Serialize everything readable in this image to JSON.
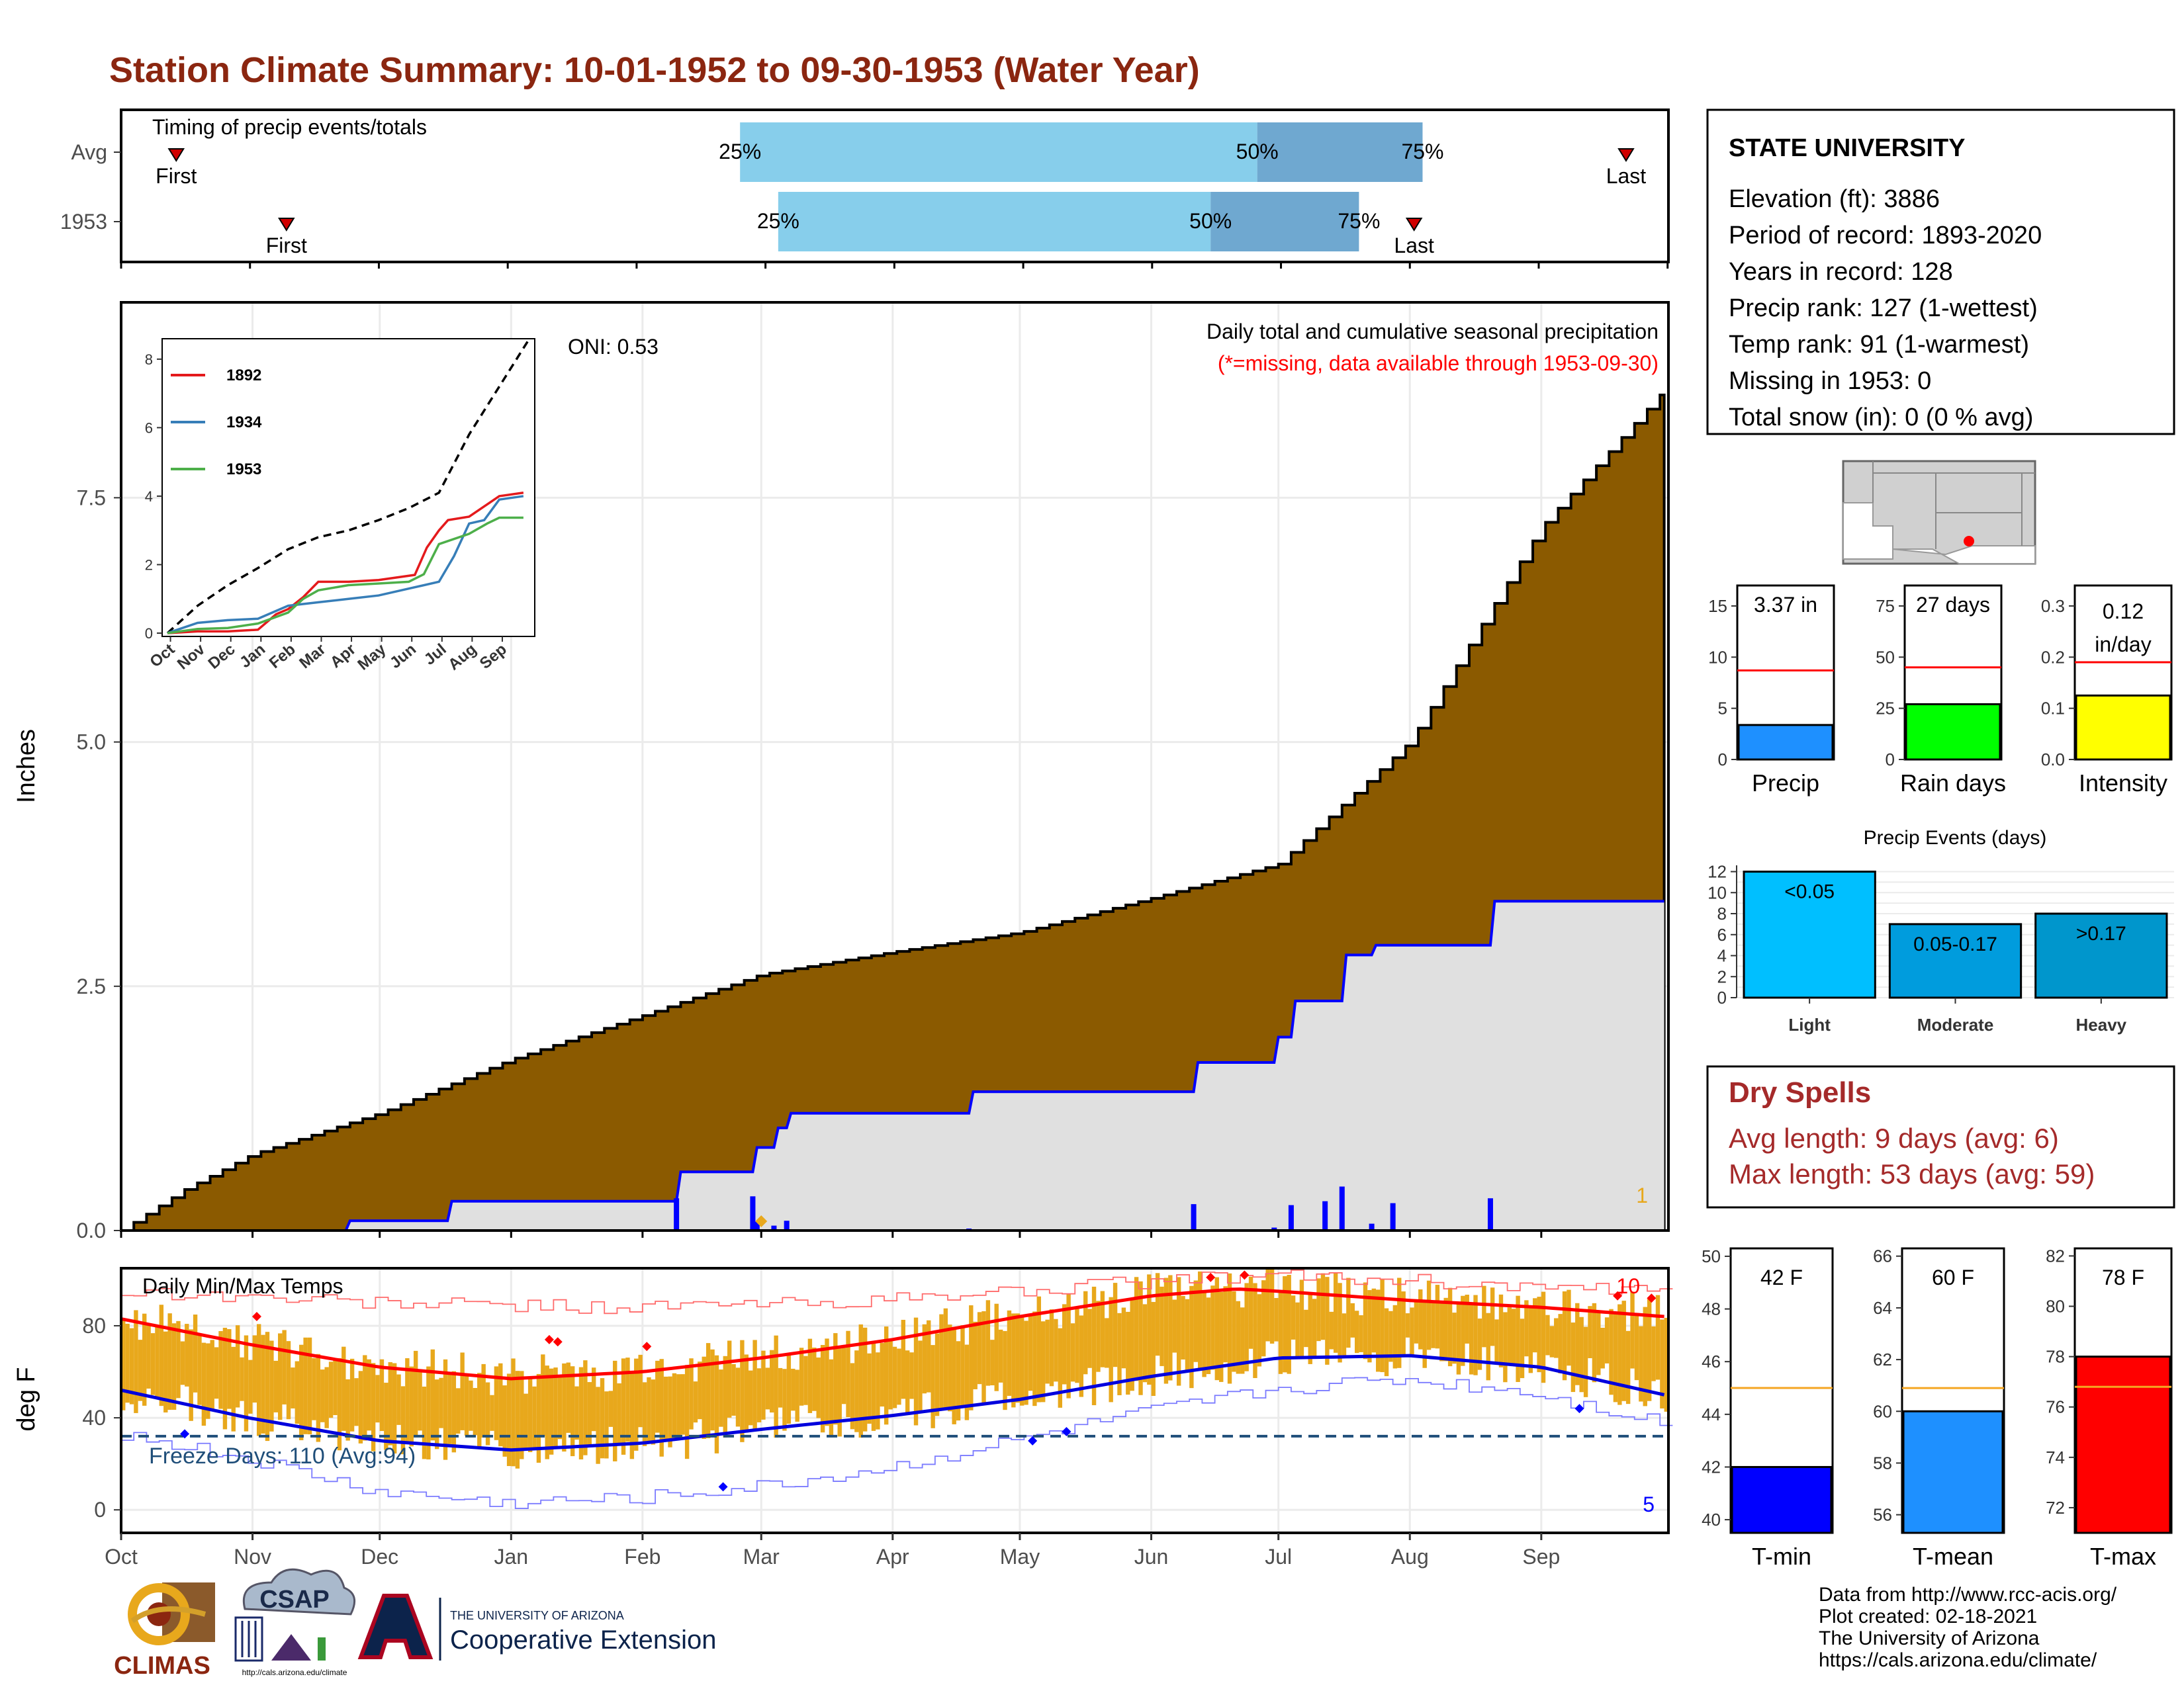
{
  "title": "Station Climate Summary: 10-01-1952 to 09-30-1953 (Water Year)",
  "colors": {
    "title": "#8b2610",
    "dry_title": "#a52a2a",
    "cum_fill": "#8b5a00",
    "cum_avg_fill": "#e0e0e0",
    "blue": "#0000ff",
    "temp_bar": "#e8a81c",
    "freeze_line": "#1f4e79",
    "light_blue": "#87ceeb",
    "mid_blue": "#6fa8d0"
  },
  "timing": {
    "title": "Timing of precip events/totals",
    "rows": [
      {
        "label": "Avg",
        "first_label": "First",
        "last_label": "Last",
        "p25_label": "25%",
        "p50_label": "50%",
        "p75_label": "75%",
        "first_day": 13,
        "last_day": 355,
        "p25": 146,
        "p50": 268,
        "p75": 307
      },
      {
        "label": "1953",
        "first_label": "First",
        "last_label": "Last",
        "p25_label": "25%",
        "p50_label": "50%",
        "p75_label": "75%",
        "first_day": 39,
        "last_day": 305,
        "p25": 155,
        "p50": 257,
        "p75": 292
      }
    ]
  },
  "station": {
    "name": "STATE UNIVERSITY",
    "lines": [
      "Elevation (ft): 3886",
      "Period of record: 1893-2020",
      "Years in record: 128",
      "Precip rank: 127 (1-wettest)",
      "Temp rank: 91 (1-warmest)",
      "Missing in 1953: 0",
      "Total snow (in): 0 (0 % avg)"
    ]
  },
  "chart_data": [
    {
      "type": "area",
      "name": "cumulative_precip",
      "title": "Daily total and cumulative seasonal precipitation",
      "subtitle": "(*=missing, data available through 1953-09-30)",
      "ylabel": "Inches",
      "oni_label": "ONI: 0.53",
      "corner_label": "1",
      "ylim": [
        0,
        9.5
      ],
      "yticks": [
        "0.0",
        "2.5",
        "5.0",
        "7.5"
      ],
      "yticks_values": [
        0,
        2.5,
        5.0,
        7.5
      ],
      "months": [
        "Oct",
        "Nov",
        "Dec",
        "Jan",
        "Feb",
        "Mar",
        "Apr",
        "May",
        "Jun",
        "Jul",
        "Aug",
        "Sep"
      ],
      "avg_cumulative": {
        "day": [
          0,
          15,
          31,
          61,
          92,
          123,
          151,
          182,
          212,
          243,
          273,
          304,
          335,
          364
        ],
        "value": [
          0,
          0.42,
          0.78,
          1.2,
          1.75,
          2.2,
          2.62,
          2.85,
          3.05,
          3.4,
          3.75,
          5.0,
          7.2,
          8.6
        ]
      },
      "year_cumulative": {
        "day": [
          0,
          53,
          54,
          77,
          78,
          131,
          132,
          149,
          150,
          154,
          155,
          157,
          158,
          200,
          201,
          253,
          254,
          272,
          273,
          276,
          277,
          288,
          289,
          295,
          296,
          323,
          324,
          364
        ],
        "value": [
          0,
          0,
          0.1,
          0.1,
          0.3,
          0.3,
          0.6,
          0.6,
          0.85,
          0.85,
          1.05,
          1.05,
          1.2,
          1.2,
          1.42,
          1.42,
          1.72,
          1.72,
          1.98,
          1.98,
          2.35,
          2.35,
          2.82,
          2.82,
          2.92,
          2.92,
          3.37,
          3.37
        ]
      },
      "daily_bars": {
        "day": [
          131,
          149,
          150,
          154,
          157,
          200,
          253,
          272,
          276,
          284,
          288,
          295,
          300,
          323
        ],
        "value": [
          0.33,
          0.35,
          0.09,
          0.05,
          0.1,
          0.02,
          0.27,
          0.03,
          0.26,
          0.3,
          0.45,
          0.07,
          0.28,
          0.33
        ]
      },
      "trace_marker_day": 151
    },
    {
      "type": "line",
      "name": "inset_cumulative",
      "categories": [
        "Oct",
        "Nov",
        "Dec",
        "Jan",
        "Feb",
        "Mar",
        "Apr",
        "May",
        "Jun",
        "Jul",
        "Aug",
        "Sep"
      ],
      "ylim": [
        0,
        8.5
      ],
      "yticks": [
        "0",
        "2",
        "4",
        "6",
        "8"
      ],
      "series": [
        {
          "name": "Avg",
          "style": "dashed",
          "color": "#000000",
          "x": [
            0,
            1,
            2,
            3,
            4,
            5,
            6,
            7,
            8,
            9,
            10,
            11,
            12
          ],
          "values": [
            0,
            0.8,
            1.4,
            1.9,
            2.45,
            2.8,
            3.0,
            3.3,
            3.65,
            4.1,
            5.8,
            7.2,
            8.6
          ]
        },
        {
          "name": "1892",
          "color": "#e41a1c",
          "x": [
            0,
            1,
            2,
            3,
            3.6,
            4,
            4.5,
            5,
            6,
            7,
            8.2,
            8.6,
            9,
            9.3,
            10,
            10.5,
            11,
            11.8
          ],
          "values": [
            0,
            0.05,
            0.05,
            0.1,
            0.55,
            0.7,
            1.05,
            1.5,
            1.5,
            1.55,
            1.7,
            2.5,
            3.0,
            3.3,
            3.4,
            3.7,
            4.0,
            4.1
          ]
        },
        {
          "name": "1934",
          "color": "#377eb8",
          "x": [
            0,
            1,
            2,
            3,
            4,
            5,
            6,
            7,
            8,
            9,
            9.5,
            10,
            10.5,
            11,
            11.8
          ],
          "values": [
            0,
            0.3,
            0.38,
            0.42,
            0.8,
            0.9,
            1.0,
            1.1,
            1.3,
            1.5,
            2.25,
            3.2,
            3.3,
            3.9,
            4.0
          ]
        },
        {
          "name": "1953",
          "color": "#4daf4a",
          "x": [
            0,
            1,
            2,
            3,
            4,
            4.5,
            5,
            6,
            7,
            8,
            8.5,
            9,
            10,
            10.6,
            11,
            11.8
          ],
          "values": [
            0,
            0.12,
            0.15,
            0.28,
            0.6,
            1.0,
            1.25,
            1.4,
            1.45,
            1.5,
            1.72,
            2.6,
            2.9,
            3.2,
            3.37,
            3.37
          ]
        }
      ]
    },
    {
      "type": "line",
      "name": "daily_temps",
      "title": "Daily Min/Max Temps",
      "ylabel": "deg F",
      "freeze_label": "Freeze Days: 110 (Avg:94)",
      "freeze_threshold": 32,
      "max_count_label": "10",
      "min_count_label": "5",
      "ylim": [
        -10,
        105
      ],
      "yticks": [
        "0",
        "40",
        "80"
      ],
      "yticks_values": [
        0,
        40,
        80
      ],
      "xticks": [
        "Oct",
        "Nov",
        "Dec",
        "Jan",
        "Feb",
        "Mar",
        "Apr",
        "May",
        "Jun",
        "Jul",
        "Aug",
        "Sep"
      ],
      "avg_max": {
        "day": [
          0,
          30,
          61,
          92,
          123,
          151,
          182,
          212,
          243,
          263,
          273,
          304,
          335,
          364
        ],
        "value": [
          83,
          72,
          62,
          57,
          60,
          66,
          74,
          84,
          93,
          96,
          95,
          91,
          88,
          84
        ]
      },
      "avg_min": {
        "day": [
          0,
          30,
          61,
          92,
          123,
          151,
          182,
          212,
          243,
          273,
          304,
          335,
          364
        ],
        "value": [
          52,
          40,
          30,
          26,
          29,
          35,
          41,
          48,
          58,
          66,
          67,
          62,
          50
        ]
      },
      "record_max": {
        "day": [
          0,
          60,
          120,
          180,
          240,
          270,
          300,
          364
        ],
        "value": [
          95,
          90,
          88,
          91,
          99,
          102,
          100,
          94
        ]
      },
      "record_min": {
        "day": [
          0,
          30,
          60,
          90,
          120,
          150,
          180,
          210,
          240,
          270,
          300,
          330,
          364
        ],
        "value": [
          33,
          22,
          8,
          3,
          5,
          10,
          18,
          30,
          42,
          52,
          57,
          52,
          38
        ]
      },
      "max_record_points": {
        "day": [
          32,
          101,
          103,
          124,
          257,
          265,
          353,
          361
        ],
        "value": [
          84,
          74,
          73,
          71,
          101,
          102,
          93,
          92
        ]
      },
      "min_record_points": {
        "day": [
          15,
          142,
          215,
          223,
          344
        ],
        "value": [
          33,
          10,
          30,
          34,
          44
        ]
      }
    },
    {
      "type": "bar",
      "name": "precip_total",
      "categories": [
        "Precip"
      ],
      "values": [
        3.37
      ],
      "avg": 8.7,
      "value_label": "3.37 in",
      "ylim": [
        0,
        17
      ],
      "yticks": [
        "0",
        "5",
        "10",
        "15"
      ],
      "yticks_values": [
        0,
        5,
        10,
        15
      ],
      "color": "#1e90ff"
    },
    {
      "type": "bar",
      "name": "rain_days",
      "categories": [
        "Rain days"
      ],
      "values": [
        27
      ],
      "avg": 45,
      "value_label": "27 days",
      "ylim": [
        0,
        85
      ],
      "yticks": [
        "0",
        "25",
        "50",
        "75"
      ],
      "yticks_values": [
        0,
        25,
        50,
        75
      ],
      "color": "#00ff00"
    },
    {
      "type": "bar",
      "name": "intensity",
      "categories": [
        "Intensity"
      ],
      "values": [
        0.125
      ],
      "avg": 0.19,
      "value_label": [
        "0.12",
        "in/day"
      ],
      "ylim": [
        0,
        0.34
      ],
      "yticks": [
        "0.0",
        "0.1",
        "0.2",
        "0.3"
      ],
      "yticks_values": [
        0,
        0.1,
        0.2,
        0.3
      ],
      "color": "#ffff00"
    },
    {
      "type": "bar",
      "name": "precip_events",
      "title": "Precip Events (days)",
      "categories": [
        "Light",
        "Moderate",
        "Heavy"
      ],
      "values": [
        12,
        7,
        8
      ],
      "value_labels": [
        "<0.05",
        "0.05-0.17",
        ">0.17"
      ],
      "ylim": [
        0,
        12.6
      ],
      "yticks": [
        "0",
        "2",
        "4",
        "6",
        "8",
        "10",
        "12"
      ],
      "yticks_values": [
        0,
        2,
        4,
        6,
        8,
        10,
        12
      ],
      "colors": [
        "#00bfff",
        "#009cdd",
        "#0096cc"
      ]
    },
    {
      "type": "bar",
      "name": "tmin",
      "categories": [
        "T-min"
      ],
      "values": [
        42
      ],
      "avg": 45,
      "value_label": "42 F",
      "ylim": [
        39.5,
        50.3
      ],
      "yticks": [
        "40",
        "42",
        "44",
        "46",
        "48",
        "50"
      ],
      "yticks_values": [
        40,
        42,
        44,
        46,
        48,
        50
      ],
      "color": "#0000ff"
    },
    {
      "type": "bar",
      "name": "tmean",
      "categories": [
        "T-mean"
      ],
      "values": [
        60
      ],
      "avg": 60.9,
      "value_label": "60 F",
      "ylim": [
        55.3,
        66.3
      ],
      "yticks": [
        "56",
        "58",
        "60",
        "62",
        "64",
        "66"
      ],
      "yticks_values": [
        56,
        58,
        60,
        62,
        64,
        66
      ],
      "color": "#1e90ff"
    },
    {
      "type": "bar",
      "name": "tmax",
      "categories": [
        "T-max"
      ],
      "values": [
        78
      ],
      "avg": 76.8,
      "value_label": "78 F",
      "ylim": [
        71,
        82.3
      ],
      "yticks": [
        "72",
        "74",
        "76",
        "78",
        "80",
        "82"
      ],
      "yticks_values": [
        72,
        74,
        76,
        78,
        80,
        82
      ],
      "color": "#ff0000"
    }
  ],
  "dry_spells": {
    "title": "Dry Spells",
    "avg_line": "Avg length: 9 days (avg: 6)",
    "max_line": "Max length: 53 days (avg: 59)"
  },
  "footer": {
    "lines": [
      "Data from http://www.rcc-acis.org/",
      "Plot created: 02-18-2021",
      "The University of Arizona",
      "https://cals.arizona.edu/climate/"
    ]
  },
  "logos": {
    "climas": "CLIMAS",
    "csap": "CSAP",
    "csap_url": "http://cals.arizona.edu/climate",
    "ua_small": "THE UNIVERSITY OF ARIZONA",
    "ua_large": "Cooperative Extension"
  }
}
